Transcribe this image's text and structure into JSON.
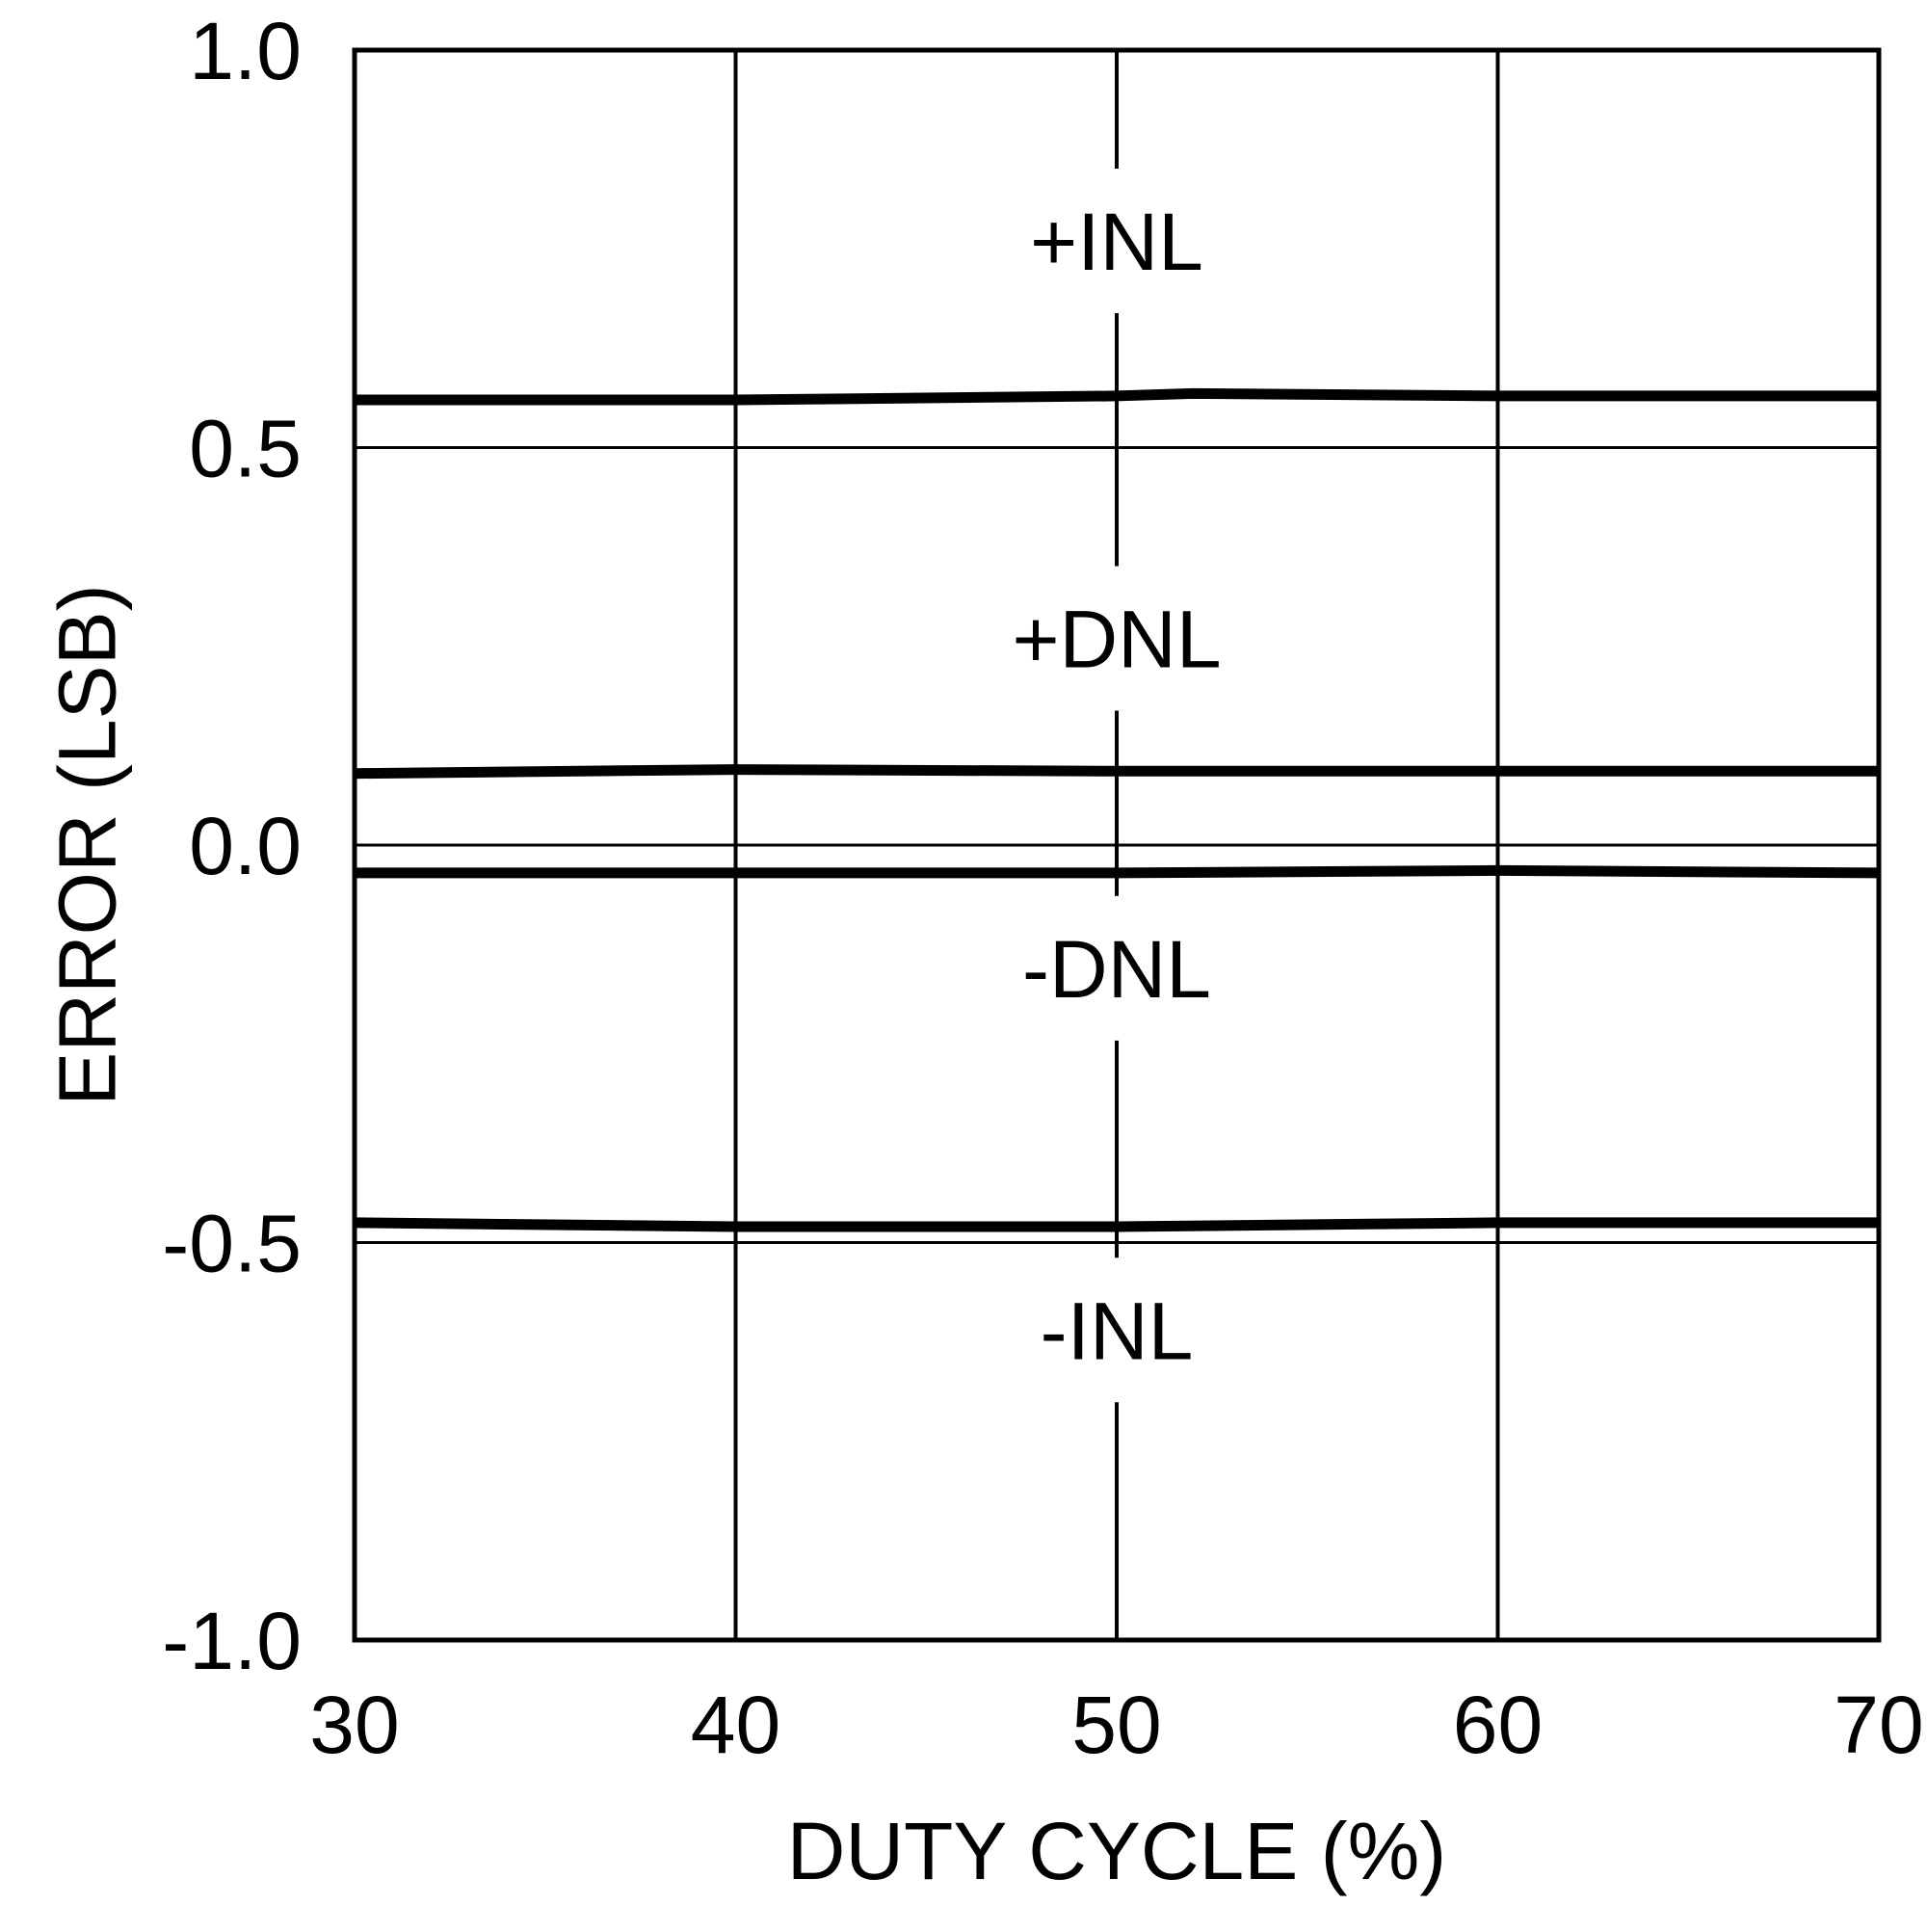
{
  "chart_data": {
    "type": "line",
    "title": "",
    "xlabel": "DUTY CYCLE (%)",
    "ylabel": "ERROR (LSB)",
    "xlim": [
      30,
      70
    ],
    "ylim": [
      -1.0,
      1.0
    ],
    "xticks": [
      30,
      40,
      50,
      60,
      70
    ],
    "xtick_labels": [
      "30",
      "40",
      "50",
      "60",
      "70"
    ],
    "yticks": [
      1.0,
      0.5,
      0.0,
      -0.5,
      -1.0
    ],
    "ytick_labels": [
      "1.0",
      "0.5",
      "0.0",
      "-0.5",
      "-1.0"
    ],
    "grid": true,
    "legend": "none",
    "series": [
      {
        "name": "+INL",
        "label_position": [
          50,
          0.76
        ],
        "x": [
          30,
          40,
          50,
          52,
          60,
          70
        ],
        "y": [
          0.56,
          0.56,
          0.565,
          0.568,
          0.565,
          0.565
        ]
      },
      {
        "name": "+DNL",
        "label_position": [
          50,
          0.26
        ],
        "x": [
          30,
          40,
          50,
          60,
          70
        ],
        "y": [
          0.09,
          0.095,
          0.093,
          0.093,
          0.093
        ]
      },
      {
        "name": "-DNL",
        "label_position": [
          50,
          -0.155
        ],
        "x": [
          30,
          40,
          50,
          60,
          70
        ],
        "y": [
          -0.035,
          -0.035,
          -0.035,
          -0.032,
          -0.035
        ]
      },
      {
        "name": "-INL",
        "label_position": [
          50,
          -0.61
        ],
        "x": [
          30,
          40,
          50,
          60,
          70
        ],
        "y": [
          -0.475,
          -0.48,
          -0.48,
          -0.475,
          -0.475
        ]
      }
    ]
  }
}
